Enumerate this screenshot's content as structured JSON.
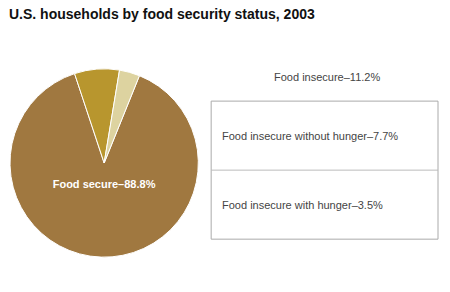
{
  "chart_data": {
    "type": "pie",
    "title": "U.S. households by food security status, 2003",
    "categories": [
      "Food secure–88.8%",
      "Food insecure without hunger–7.7%",
      "Food insecure with hunger–3.5%"
    ],
    "values": [
      88.8,
      7.7,
      3.5
    ],
    "colors": [
      "#a07840",
      "#b8962e",
      "#ddd3a0"
    ],
    "annotations": [
      "Food insecure–11.2%"
    ]
  }
}
